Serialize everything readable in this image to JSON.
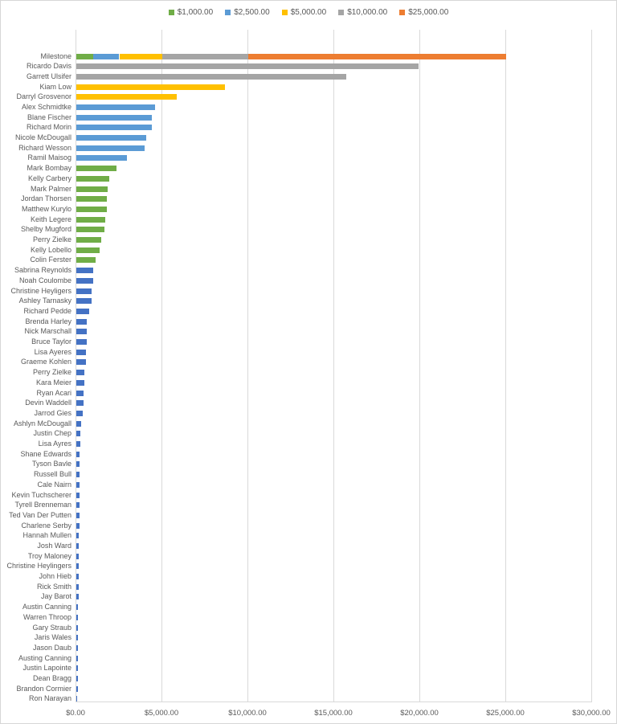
{
  "legend": {
    "items": [
      {
        "label": "$1,000.00",
        "tier": "tier_1000"
      },
      {
        "label": "$2,500.00",
        "tier": "tier_2500"
      },
      {
        "label": "$5,000.00",
        "tier": "tier_5000"
      },
      {
        "label": "$10,000.00",
        "tier": "tier_10000"
      },
      {
        "label": "$25,000.00",
        "tier": "tier_25000"
      }
    ]
  },
  "chart_data": {
    "type": "bar",
    "orientation": "horizontal",
    "title": "",
    "xlabel": "",
    "ylabel": "",
    "xlim": [
      0,
      30000
    ],
    "grid": true,
    "legend_position": "top-center",
    "x_ticks": [
      {
        "value": 0,
        "label": "$0.00"
      },
      {
        "value": 5000,
        "label": "$5,000.00"
      },
      {
        "value": 10000,
        "label": "$10,000.00"
      },
      {
        "value": 15000,
        "label": "$15,000.00"
      },
      {
        "value": 20000,
        "label": "$20,000.00"
      },
      {
        "value": 25000,
        "label": "$25,000.00"
      },
      {
        "value": 30000,
        "label": "$30,000.00"
      }
    ],
    "palette": {
      "tier_1000": "#70AD47",
      "tier_2500": "#5B9BD5",
      "tier_5000": "#FFC000",
      "tier_10000": "#A5A5A5",
      "tier_25000": "#ED7D31",
      "tier_none": "#4472C4"
    },
    "rows": [
      {
        "name": "Milestone",
        "segments": [
          {
            "value": 1000,
            "tier": "tier_1000"
          },
          {
            "value": 1500,
            "tier": "tier_2500"
          },
          {
            "value": 2500,
            "tier": "tier_5000"
          },
          {
            "value": 5000,
            "tier": "tier_10000"
          },
          {
            "value": 15000,
            "tier": "tier_25000"
          }
        ]
      },
      {
        "name": "Ricardo Davis",
        "value": 19900,
        "tier": "tier_10000"
      },
      {
        "name": "Garrett Ulsifer",
        "value": 15700,
        "tier": "tier_10000"
      },
      {
        "name": "Kiam Low",
        "value": 8650,
        "tier": "tier_5000"
      },
      {
        "name": "Darryl Grosvenor",
        "value": 5850,
        "tier": "tier_5000"
      },
      {
        "name": "Alex Schmidtke",
        "value": 4600,
        "tier": "tier_2500"
      },
      {
        "name": "Blane Fischer",
        "value": 4400,
        "tier": "tier_2500"
      },
      {
        "name": "Richard Morin",
        "value": 4390,
        "tier": "tier_2500"
      },
      {
        "name": "Nicole McDougall",
        "value": 4050,
        "tier": "tier_2500"
      },
      {
        "name": "Richard Wesson",
        "value": 3950,
        "tier": "tier_2500"
      },
      {
        "name": "Ramil Maisog",
        "value": 2930,
        "tier": "tier_2500"
      },
      {
        "name": "Mark Bombay",
        "value": 2350,
        "tier": "tier_1000"
      },
      {
        "name": "Kelly Carbery",
        "value": 1915,
        "tier": "tier_1000"
      },
      {
        "name": "Mark Palmer",
        "value": 1800,
        "tier": "tier_1000"
      },
      {
        "name": "Jordan Thorsen",
        "value": 1790,
        "tier": "tier_1000"
      },
      {
        "name": "Matthew Kurylo",
        "value": 1760,
        "tier": "tier_1000"
      },
      {
        "name": "Keith Legere",
        "value": 1680,
        "tier": "tier_1000"
      },
      {
        "name": "Shelby Mugford",
        "value": 1630,
        "tier": "tier_1000"
      },
      {
        "name": "Perry Zielke",
        "value": 1470,
        "tier": "tier_1000"
      },
      {
        "name": "Kelly Lobello",
        "value": 1350,
        "tier": "tier_1000"
      },
      {
        "name": "Colin Ferster",
        "value": 1110,
        "tier": "tier_1000"
      },
      {
        "name": "Sabrina Reynolds",
        "value": 975,
        "tier": "tier_none"
      },
      {
        "name": "Noah Coulombe",
        "value": 970,
        "tier": "tier_none"
      },
      {
        "name": "Christine Heyligers",
        "value": 890,
        "tier": "tier_none"
      },
      {
        "name": "Ashley Tarnasky",
        "value": 870,
        "tier": "tier_none"
      },
      {
        "name": "Richard Pedde",
        "value": 765,
        "tier": "tier_none"
      },
      {
        "name": "Brenda Harley",
        "value": 625,
        "tier": "tier_none"
      },
      {
        "name": "Nick Marschall",
        "value": 620,
        "tier": "tier_none"
      },
      {
        "name": "Bruce Taylor",
        "value": 615,
        "tier": "tier_none"
      },
      {
        "name": "Lisa Ayeres",
        "value": 560,
        "tier": "tier_none"
      },
      {
        "name": "Graeme Kohlen",
        "value": 550,
        "tier": "tier_none"
      },
      {
        "name": "Perry Zielke",
        "value": 450,
        "tier": "tier_none"
      },
      {
        "name": "Kara Meier",
        "value": 445,
        "tier": "tier_none"
      },
      {
        "name": "Ryan Acari",
        "value": 440,
        "tier": "tier_none"
      },
      {
        "name": "Devin Waddell",
        "value": 430,
        "tier": "tier_none"
      },
      {
        "name": "Jarrod Gies",
        "value": 380,
        "tier": "tier_none"
      },
      {
        "name": "Ashlyn McDougall",
        "value": 280,
        "tier": "tier_none"
      },
      {
        "name": "Justin Chep",
        "value": 220,
        "tier": "tier_none"
      },
      {
        "name": "Lisa Ayres",
        "value": 215,
        "tier": "tier_none"
      },
      {
        "name": "Shane Edwards",
        "value": 210,
        "tier": "tier_none"
      },
      {
        "name": "Tyson Bavle",
        "value": 205,
        "tier": "tier_none"
      },
      {
        "name": "Russell Bull",
        "value": 200,
        "tier": "tier_none"
      },
      {
        "name": "Cale Nairn",
        "value": 200,
        "tier": "tier_none"
      },
      {
        "name": "Kevin Tuchscherer",
        "value": 190,
        "tier": "tier_none"
      },
      {
        "name": "Tyrell Brenneman",
        "value": 185,
        "tier": "tier_none"
      },
      {
        "name": "Ted Van Der Putten",
        "value": 180,
        "tier": "tier_none"
      },
      {
        "name": "Charlene Serby",
        "value": 165,
        "tier": "tier_none"
      },
      {
        "name": "Hannah Mullen",
        "value": 160,
        "tier": "tier_none"
      },
      {
        "name": "Josh Ward",
        "value": 145,
        "tier": "tier_none"
      },
      {
        "name": "Troy Maloney",
        "value": 140,
        "tier": "tier_none"
      },
      {
        "name": "Christine Heylingers",
        "value": 130,
        "tier": "tier_none"
      },
      {
        "name": "John Hieb",
        "value": 125,
        "tier": "tier_none"
      },
      {
        "name": "Rick Smith",
        "value": 125,
        "tier": "tier_none"
      },
      {
        "name": "Jay Barot",
        "value": 120,
        "tier": "tier_none"
      },
      {
        "name": "Austin Canning",
        "value": 115,
        "tier": "tier_none"
      },
      {
        "name": "Warren Throop",
        "value": 115,
        "tier": "tier_none"
      },
      {
        "name": "Gary Straub",
        "value": 110,
        "tier": "tier_none"
      },
      {
        "name": "Jaris Wales",
        "value": 110,
        "tier": "tier_none"
      },
      {
        "name": "Jason Daub",
        "value": 105,
        "tier": "tier_none"
      },
      {
        "name": "Austing Canning",
        "value": 95,
        "tier": "tier_none"
      },
      {
        "name": "Justin Lapointe",
        "value": 90,
        "tier": "tier_none"
      },
      {
        "name": "Dean Bragg",
        "value": 85,
        "tier": "tier_none"
      },
      {
        "name": "Brandon Cormier",
        "value": 85,
        "tier": "tier_none"
      },
      {
        "name": "Ron Narayan",
        "value": 30,
        "tier": "tier_none"
      }
    ]
  }
}
